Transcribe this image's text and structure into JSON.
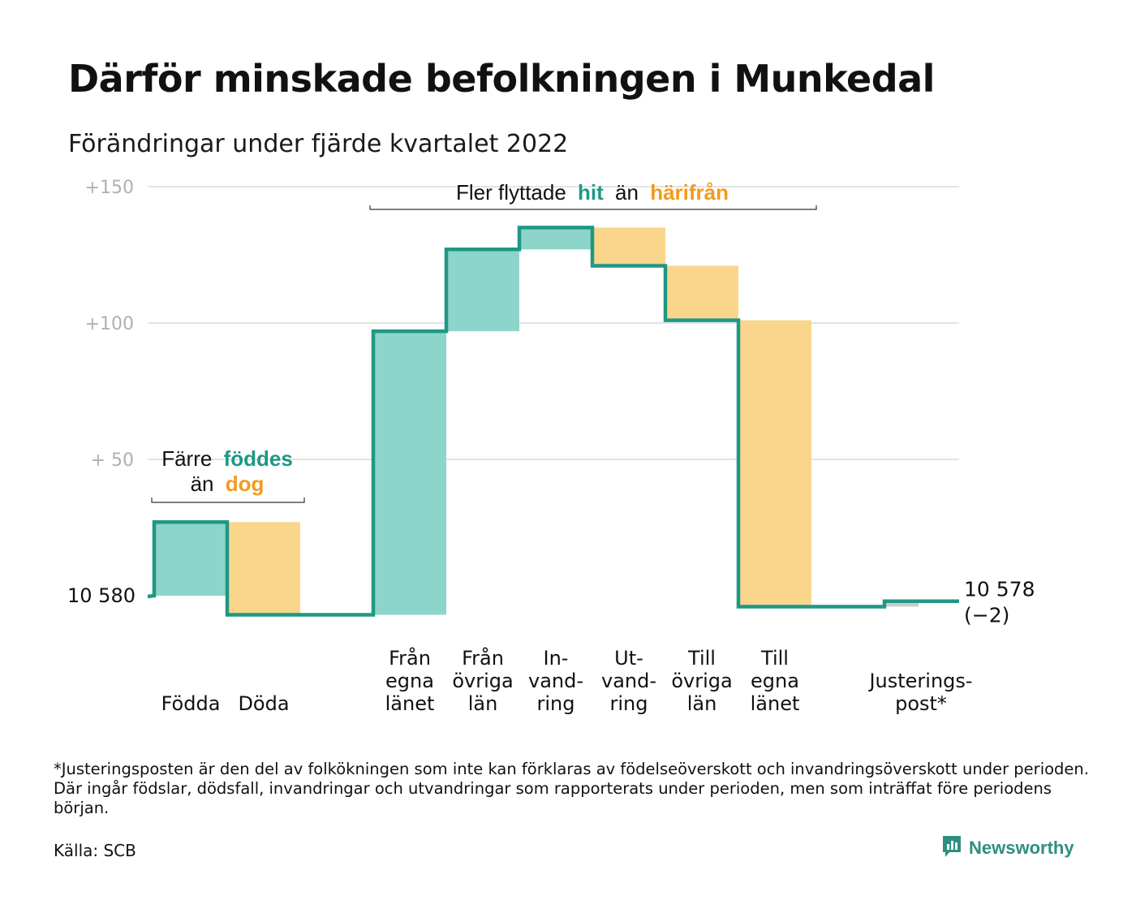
{
  "header": {
    "title": "Därför minskade befolkningen i Munkedal",
    "subtitle": "Förändringar under fjärde kvartalet 2022"
  },
  "colors": {
    "inflow": "#8dd5cb",
    "outflow": "#f9d68c",
    "line": "#1f9885",
    "accent_green": "#1f9885",
    "accent_orange": "#f29a1f",
    "adjustment": "#cccccc",
    "grid": "#e3e3e3",
    "tick": "#b0b0b0"
  },
  "annotations": {
    "births": {
      "prefix": "Färre",
      "green_word": "föddes",
      "line2_prefix": "än",
      "orange_word": "dog"
    },
    "migration": {
      "prefix": "Fler flyttade",
      "green_word": "hit",
      "middle": "än",
      "orange_word": "härifrån"
    }
  },
  "chart_data": {
    "type": "waterfall",
    "title": "Därför minskade befolkningen i Munkedal",
    "subtitle": "Förändringar under fjärde kvartalet 2022",
    "ylim": [
      -8,
      150
    ],
    "yticks": [
      {
        "value": 150,
        "label": "+150"
      },
      {
        "value": 100,
        "label": "+100"
      },
      {
        "value": 50,
        "label": "+ 50"
      },
      {
        "value": 0,
        "label": "10 580"
      }
    ],
    "start_population": 10580,
    "end_label": "10 578",
    "end_change_label": "(−2)",
    "categories": [
      {
        "lines": [
          "Födda"
        ],
        "change": 27,
        "kind": "in"
      },
      {
        "lines": [
          "Döda"
        ],
        "change": -34,
        "kind": "out"
      },
      {
        "lines": [],
        "change": 0,
        "kind": "gap"
      },
      {
        "lines": [
          "Från",
          "egna",
          "länet"
        ],
        "change": 104,
        "kind": "in"
      },
      {
        "lines": [
          "Från",
          "övriga",
          "län"
        ],
        "change": 30,
        "kind": "in"
      },
      {
        "lines": [
          "In-",
          "vand-",
          "ring"
        ],
        "change": 8,
        "kind": "in"
      },
      {
        "lines": [
          "Ut-",
          "vand-",
          "ring"
        ],
        "change": -14,
        "kind": "out"
      },
      {
        "lines": [
          "Till",
          "övriga",
          "län"
        ],
        "change": -20,
        "kind": "out"
      },
      {
        "lines": [
          "Till",
          "egna",
          "länet"
        ],
        "change": -105,
        "kind": "out"
      },
      {
        "lines": [],
        "change": 0,
        "kind": "gap"
      },
      {
        "lines": [
          "Justerings-",
          "post*"
        ],
        "change": 2,
        "kind": "adj"
      }
    ]
  },
  "footnote": "*Justeringsposten är den del av folkökningen som inte kan förklaras av födelseöverskott och invandringsöverskott under perioden. Där ingår födslar, dödsfall, invandringar och utvandringar som rapporterats under perioden, men som inträffat före periodens början.",
  "source": "Källa: SCB",
  "brand": {
    "name": "Newsworthy",
    "icon": "newsworthy-logo-icon"
  }
}
